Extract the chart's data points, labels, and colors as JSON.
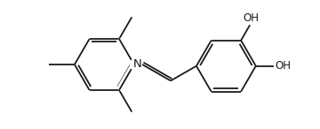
{
  "bg_color": "#ffffff",
  "line_color": "#1a1a1a",
  "lw": 1.3,
  "fs": 8.5,
  "fig_width": 3.6,
  "fig_height": 1.46,
  "dpi": 100,
  "xlim": [
    -1.0,
    9.5
  ],
  "ylim": [
    -2.2,
    2.2
  ]
}
